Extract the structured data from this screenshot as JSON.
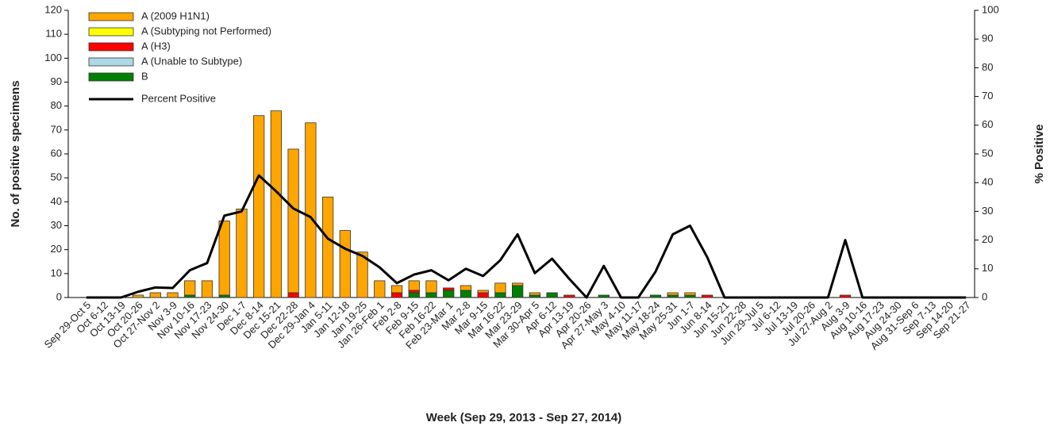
{
  "chart_data": {
    "type": "bar",
    "x_label": "Week (Sep 29, 2013 - Sep 27, 2014)",
    "y_label": "No. of positive specimens",
    "y2_label": "% Positive",
    "categories": [
      "Sep 29-Oct 5",
      "Oct 6-12",
      "Oct 13-19",
      "Oct 20-26",
      "Oct 27-Nov 2",
      "Nov 3-9",
      "Nov 10-16",
      "Nov 17-23",
      "Nov 24-30",
      "Dec 1-7",
      "Dec 8-14",
      "Dec 15-21",
      "Dec 22-28",
      "Dec 29-Jan 4",
      "Jan 5-11",
      "Jan 12-18",
      "Jan 19-25",
      "Jan 26-Feb 1",
      "Feb 2-8",
      "Feb 9-15",
      "Feb 16-22",
      "Feb 23-Mar 1",
      "Mar 2-8",
      "Mar 9-15",
      "Mar 16-22",
      "Mar 23-29",
      "Mar 30-Apr 5",
      "Apr 6-12",
      "Apr 13-19",
      "Apr 20-26",
      "Apr 27-May 3",
      "May 4-10",
      "May 11-17",
      "May 18-24",
      "May 25-31",
      "Jun 1-7",
      "Jun 8-14",
      "Jun 15-21",
      "Jun 22-28",
      "Jun 29-Jul 5",
      "Jul 6-12",
      "Jul 13-19",
      "Jul 20-26",
      "Jul 27-Aug 2",
      "Aug 3-9",
      "Aug 10-16",
      "Aug 17-23",
      "Aug 24-30",
      "Aug 31-Sep 6",
      "Sep 7-13",
      "Sep 14-20",
      "Sep 21-27"
    ],
    "series": [
      {
        "name": "A (2009 H1N1)",
        "color": "#FFA500",
        "values": [
          0,
          0,
          0,
          1,
          2,
          2,
          6,
          7,
          31,
          37,
          76,
          78,
          60,
          73,
          42,
          28,
          19,
          7,
          3,
          4,
          5,
          0,
          2,
          1,
          4,
          1,
          1,
          0,
          0,
          0,
          0,
          0,
          0,
          0,
          1,
          1,
          0,
          0,
          0,
          0,
          0,
          0,
          0,
          0,
          0,
          0,
          0,
          0,
          0,
          0,
          0,
          0
        ]
      },
      {
        "name": "A (Subtyping not Performed)",
        "color": "#FFFF00",
        "values": [
          0,
          0,
          0,
          0,
          0,
          0,
          0,
          0,
          0,
          0,
          0,
          0,
          0,
          0,
          0,
          0,
          0,
          0,
          0,
          0,
          0,
          0,
          0,
          0,
          0,
          0,
          0,
          0,
          0,
          0,
          0,
          0,
          0,
          0,
          0,
          0,
          0,
          0,
          0,
          0,
          0,
          0,
          0,
          0,
          0,
          0,
          0,
          0,
          0,
          0,
          0,
          0
        ]
      },
      {
        "name": "A (H3)",
        "color": "#FF0000",
        "values": [
          0,
          0,
          0,
          0,
          0,
          0,
          0,
          0,
          0,
          0,
          0,
          0,
          2,
          0,
          0,
          0,
          0,
          0,
          2,
          1,
          0,
          1,
          0,
          2,
          0,
          0,
          0,
          0,
          1,
          0,
          0,
          0,
          0,
          0,
          0,
          0,
          1,
          0,
          0,
          0,
          0,
          0,
          0,
          0,
          1,
          0,
          0,
          0,
          0,
          0,
          0,
          0
        ]
      },
      {
        "name": "A (Unable to Subtype)",
        "color": "#ADD8E6",
        "values": [
          0,
          0,
          0,
          0,
          0,
          0,
          0,
          0,
          0,
          0,
          0,
          0,
          0,
          0,
          0,
          0,
          0,
          0,
          0,
          0,
          0,
          0,
          0,
          0,
          0,
          0,
          0,
          0,
          0,
          0,
          0,
          0,
          0,
          0,
          0,
          0,
          0,
          0,
          0,
          0,
          0,
          0,
          0,
          0,
          0,
          0,
          0,
          0,
          0,
          0,
          0,
          0
        ]
      },
      {
        "name": "B",
        "color": "#008000",
        "values": [
          0,
          0,
          0,
          0,
          0,
          0,
          1,
          0,
          1,
          0,
          0,
          0,
          0,
          0,
          0,
          0,
          0,
          0,
          0,
          2,
          2,
          3,
          3,
          0,
          2,
          5,
          1,
          2,
          0,
          0,
          1,
          0,
          0,
          1,
          1,
          1,
          0,
          0,
          0,
          0,
          0,
          0,
          0,
          0,
          0,
          0,
          0,
          0,
          0,
          0,
          0,
          0
        ]
      },
      {
        "name": "Percent Positive",
        "color": "#000000",
        "type": "line",
        "axis": "y2",
        "values": [
          0,
          0,
          0,
          2,
          3.5,
          3.3,
          9.5,
          12,
          28.5,
          30,
          42.5,
          37,
          31,
          28,
          20.5,
          17,
          14.5,
          10.5,
          5,
          8,
          9.5,
          6,
          10,
          7.5,
          13,
          22,
          8.5,
          13.5,
          6.5,
          0,
          11,
          0,
          0,
          9,
          22,
          25,
          14,
          0,
          0,
          0,
          0,
          0,
          0,
          0,
          20,
          0,
          0,
          0,
          0,
          0,
          0,
          0
        ]
      }
    ],
    "ylim": [
      0,
      120
    ],
    "yticks": [
      0,
      10,
      20,
      30,
      40,
      50,
      60,
      70,
      80,
      90,
      100,
      110,
      120
    ],
    "y2lim": [
      0,
      100
    ],
    "y2ticks": [
      0,
      10,
      20,
      30,
      40,
      50,
      60,
      70,
      80,
      90,
      100
    ],
    "legend": "top-left",
    "grid": false
  }
}
